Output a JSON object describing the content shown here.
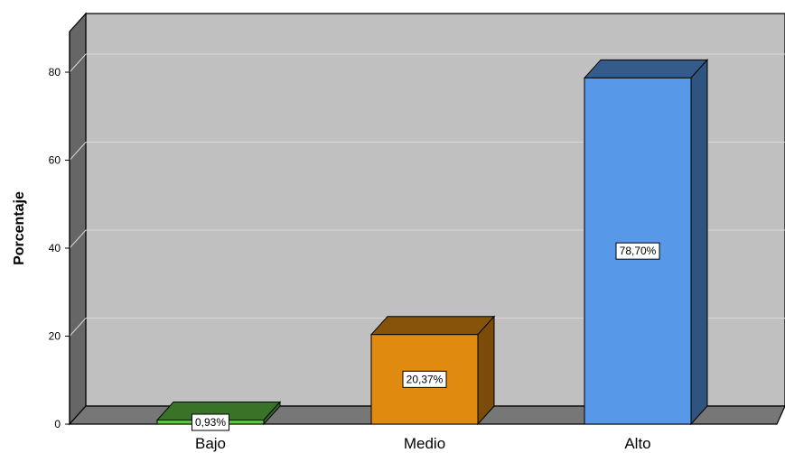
{
  "chart_data": {
    "type": "bar",
    "title": "",
    "xlabel": "",
    "ylabel": "Porcentaje",
    "ylim": [
      0,
      80
    ],
    "yticks": [
      "0",
      "20",
      "40",
      "60",
      "80"
    ],
    "yticks_values": [
      0,
      20,
      40,
      60,
      80
    ],
    "grid": true,
    "categories": [
      "Bajo",
      "Medio",
      "Alto"
    ],
    "values": [
      0.93,
      20.37,
      78.7
    ],
    "data_labels": [
      "0,93%",
      "20,37%",
      "78,70%"
    ],
    "colors": [
      "#5fc041",
      "#e08a10",
      "#5898e8"
    ],
    "style": "3d"
  }
}
